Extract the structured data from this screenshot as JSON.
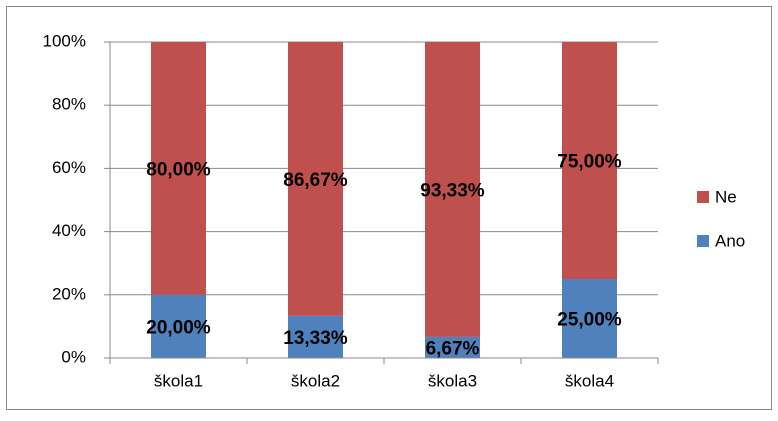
{
  "chart_data": {
    "type": "stacked_bar",
    "categories": [
      "škola1",
      "škola2",
      "škola3",
      "škola4"
    ],
    "series": [
      {
        "name": "Ano",
        "color": "#4f81bd",
        "values": [
          20,
          13.33,
          6.67,
          25
        ],
        "value_labels": [
          "20,00%",
          "13,33%",
          "6,67%",
          "25,00%"
        ]
      },
      {
        "name": "Ne",
        "color": "#c0504d",
        "values": [
          80,
          86.67,
          93.33,
          75
        ],
        "value_labels": [
          "80,00%",
          "86,67%",
          "93,33%",
          "75,00%"
        ]
      }
    ],
    "ylim": [
      0,
      100
    ],
    "yticks": [
      {
        "value": 0,
        "label": "0%"
      },
      {
        "value": 20,
        "label": "20%"
      },
      {
        "value": 40,
        "label": "40%"
      },
      {
        "value": 60,
        "label": "60%"
      },
      {
        "value": 80,
        "label": "80%"
      },
      {
        "value": 100,
        "label": "100%"
      }
    ],
    "grid": true,
    "legend": "right"
  }
}
